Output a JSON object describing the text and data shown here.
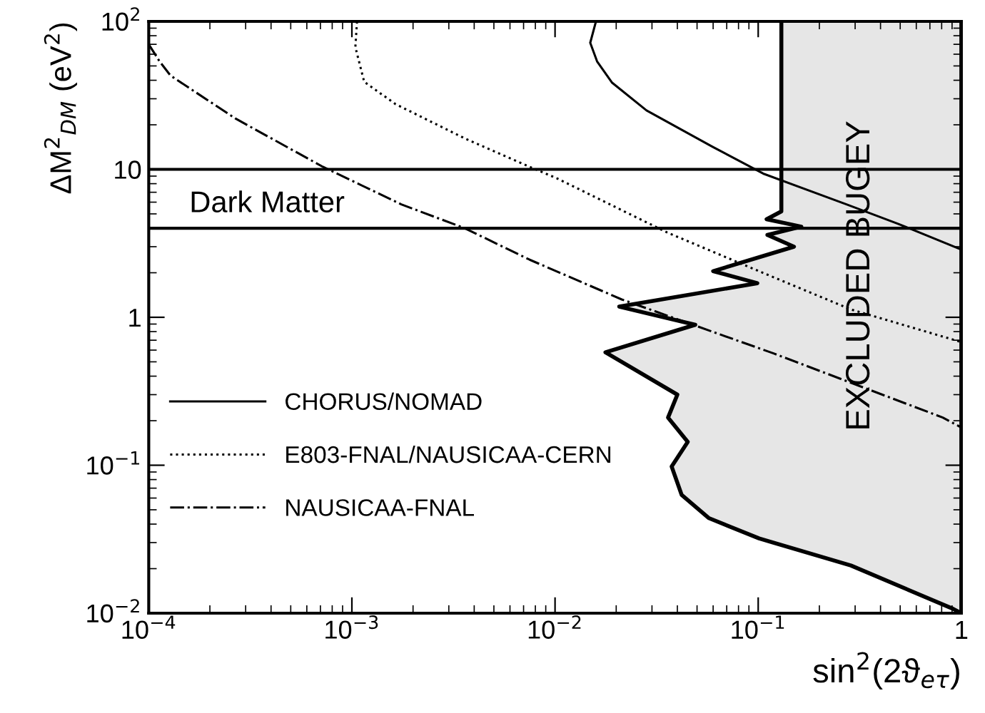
{
  "chart_data": {
    "type": "line",
    "xlabel": "sin$^{2}$(2ϑ$_{eτ}$)",
    "ylabel": "ΔM$^{2}$$_{DM}$ (eV$^{2}$)",
    "log": "xy",
    "xlim": [
      0.0001,
      1
    ],
    "ylim": [
      0.01,
      100
    ],
    "xticks": [
      {
        "value": 0.0001,
        "label": "10$^{−4}$"
      },
      {
        "value": 0.001,
        "label": "10$^{−3}$"
      },
      {
        "value": 0.01,
        "label": "10$^{−2}$"
      },
      {
        "value": 0.1,
        "label": "10$^{−1}$"
      },
      1
    ],
    "yticks": [
      {
        "value": 0.01,
        "label": "10$^{−2}$"
      },
      {
        "value": 0.1,
        "label": "10$^{−1}$"
      },
      1,
      10,
      {
        "value": 100,
        "label": "10$^{2}$"
      }
    ],
    "legend": "bottom left",
    "series": [
      {
        "type": "area",
        "color": "#e6e6e6",
        "x": [
          0.13,
          0.13,
          0.11,
          0.163,
          0.111,
          0.15,
          0.06,
          0.099,
          0.0207,
          0.049,
          0.0177,
          0.04,
          0.036,
          0.045,
          0.0375,
          0.042,
          0.057,
          0.101,
          0.286,
          0.91,
          1,
          1
        ],
        "values": [
          100,
          5.2,
          4.6,
          4.1,
          3.6,
          3.0,
          2.05,
          1.7,
          1.18,
          0.89,
          0.58,
          0.3,
          0.21,
          0.144,
          0.098,
          0.063,
          0.044,
          0.032,
          0.021,
          0.0107,
          0.01,
          100
        ]
      },
      {
        "name": "CHORUS/NOMAD",
        "color": "#000000",
        "line_style": "solid",
        "x": [
          0.0159,
          0.0149,
          0.0161,
          0.0191,
          0.0282,
          0.0596,
          0.107,
          0.272,
          0.485,
          1
        ],
        "values": [
          100,
          71.7,
          53.7,
          38.5,
          25,
          14.2,
          9.3,
          5.8,
          4.3,
          2.87
        ]
      },
      {
        "name": "E803-FNAL/NAUSICAA-CERN",
        "color": "#000000",
        "line_style": "dotted",
        "x": [
          0.00106,
          0.00104,
          0.00115,
          0.00164,
          0.00359,
          0.0075,
          0.0102,
          0.0357,
          0.1,
          0.286,
          1
        ],
        "values": [
          100,
          67,
          39,
          27.6,
          16.2,
          10.4,
          8.7,
          3.74,
          2.06,
          1.13,
          0.68
        ]
      },
      {
        "name": "NAUSICAA-FNAL",
        "color": "#000000",
        "line_style": "dashdot",
        "x": [
          0.0001,
          0.000113,
          0.000128,
          0.000268,
          0.00072,
          0.00175,
          0.00359,
          0.0075,
          0.0213,
          0.119,
          0.81,
          1
        ],
        "values": [
          70,
          53.7,
          43,
          22,
          10.4,
          5.8,
          4.0,
          2.45,
          1.32,
          0.57,
          0.21,
          0.18
        ]
      }
    ],
    "ref_lines": [
      {
        "axis": "y",
        "value": 10
      },
      {
        "axis": "y",
        "value": 4,
        "label": "Dark Matter"
      }
    ],
    "annotations": [
      "EXCLUDED BUGEY"
    ]
  }
}
